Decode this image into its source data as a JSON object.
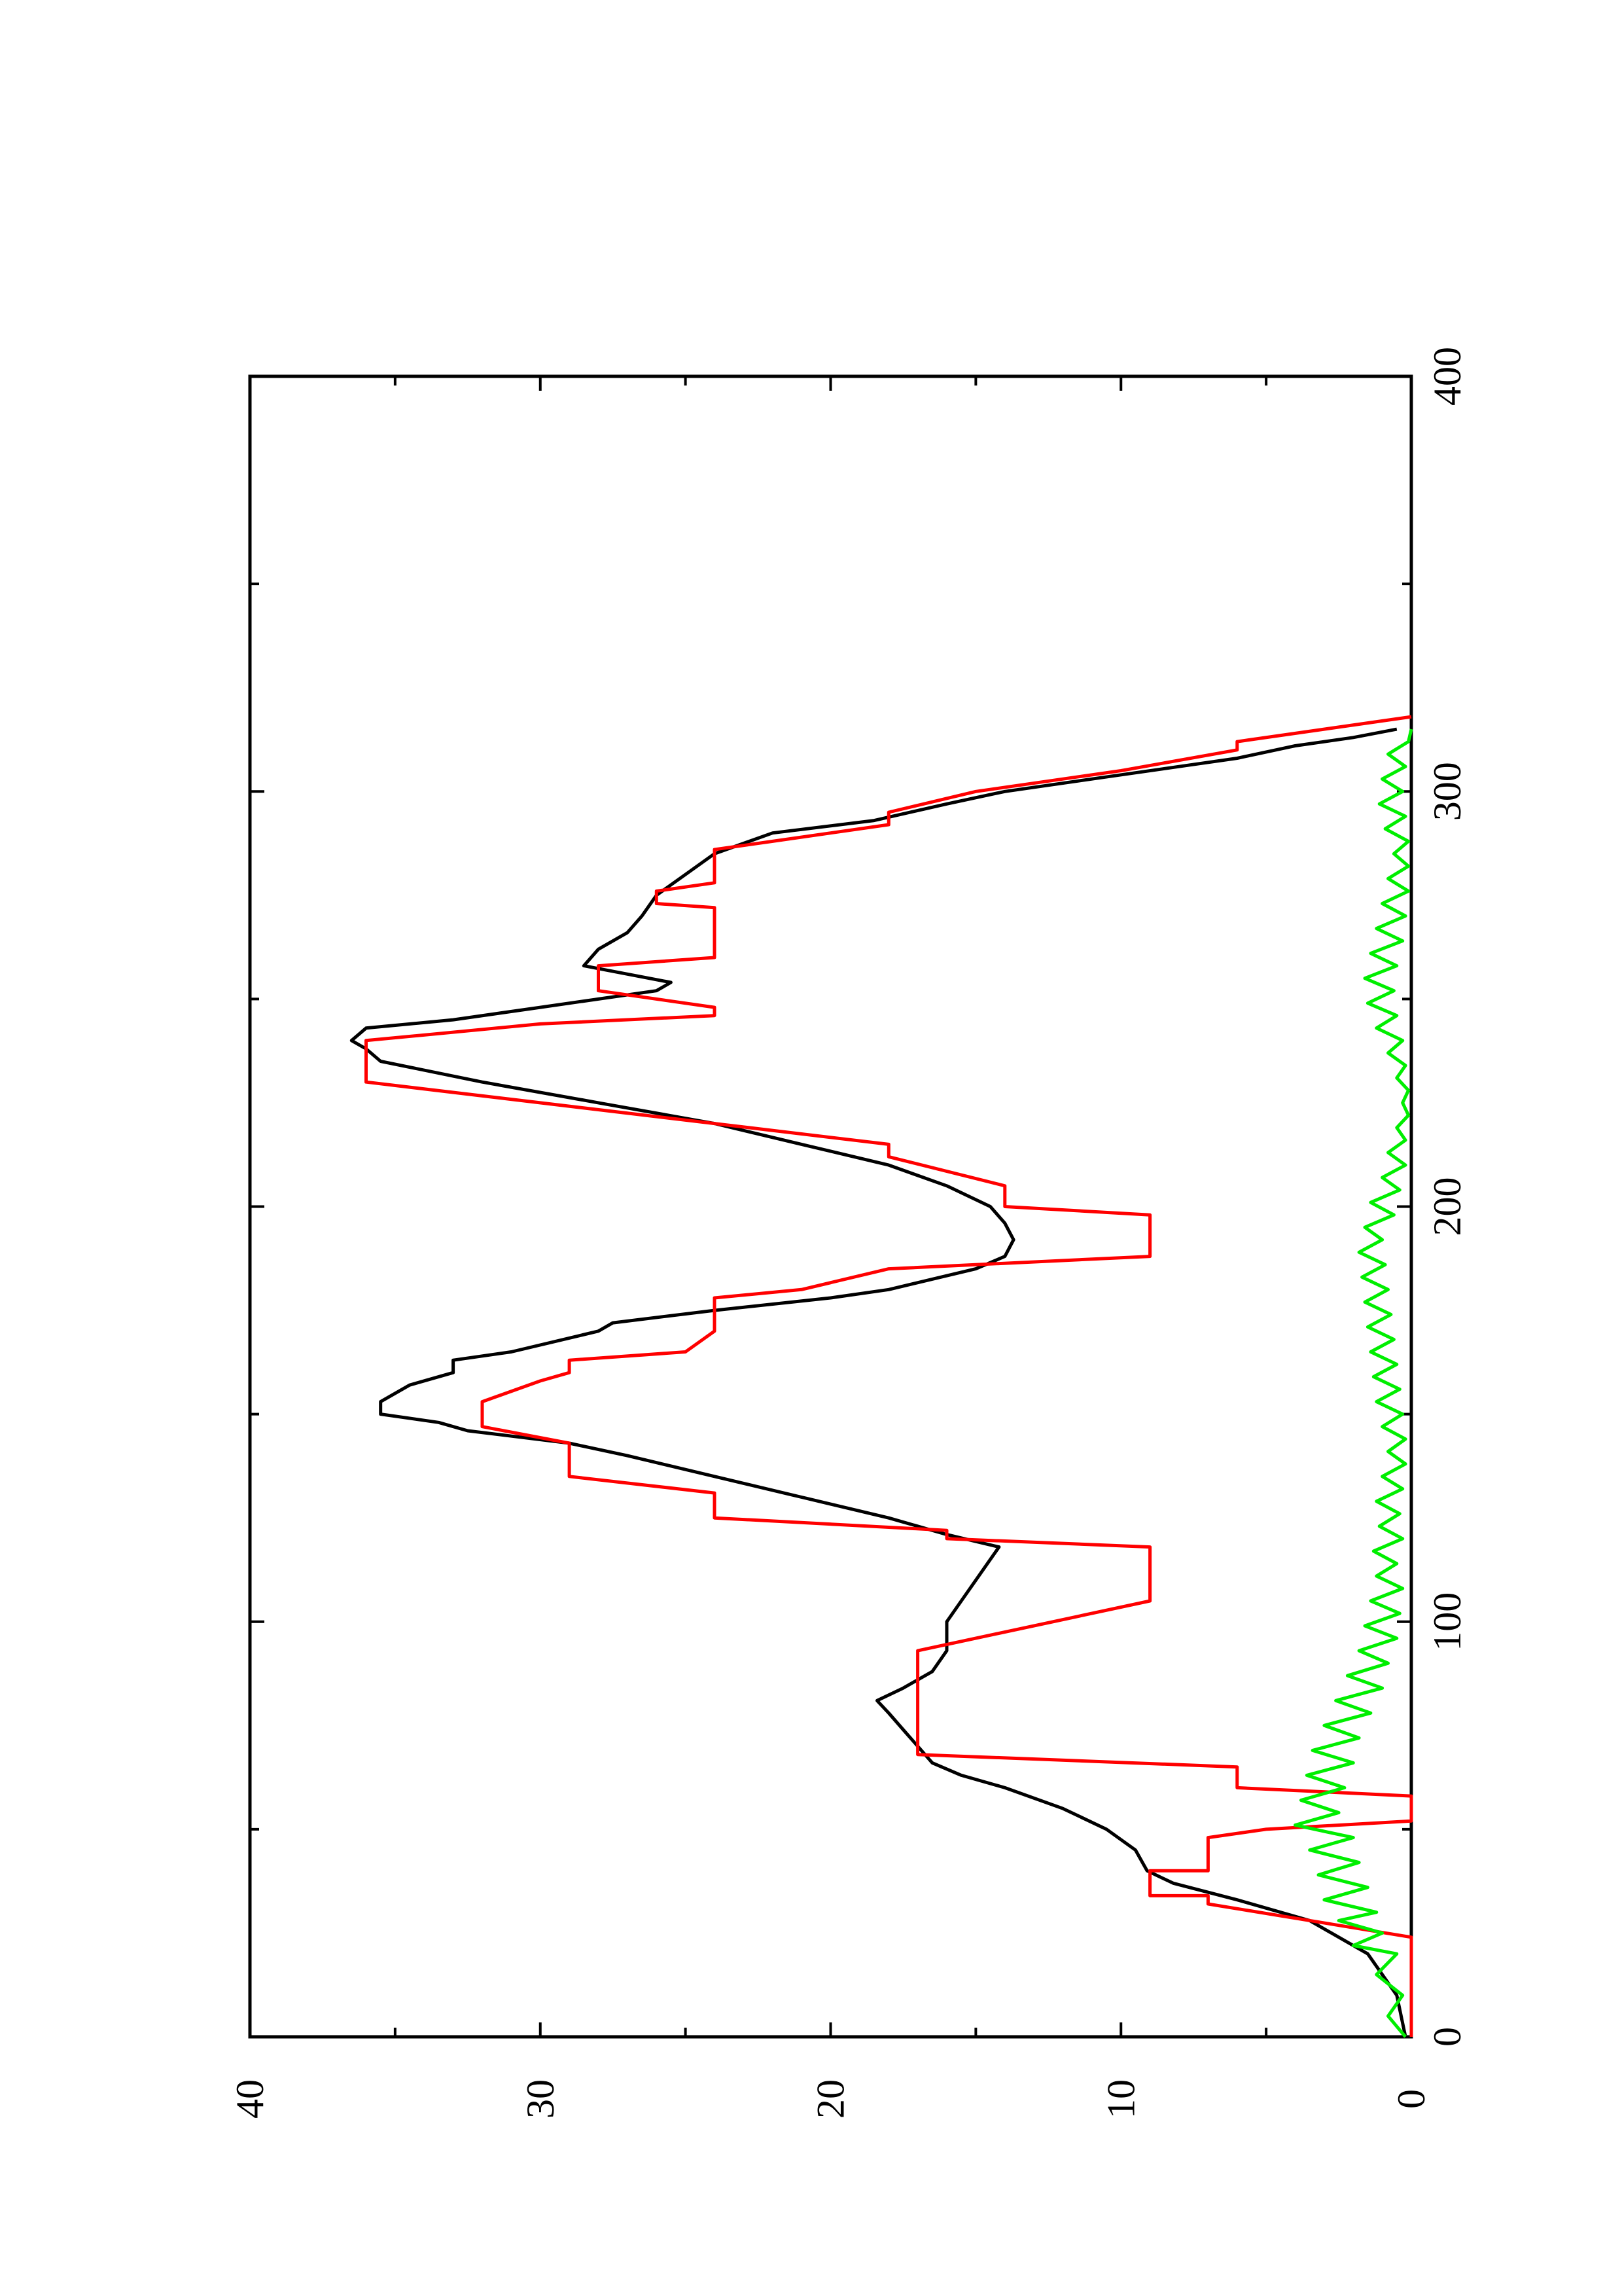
{
  "chart_data": {
    "type": "line",
    "title": "",
    "xlabel": "",
    "ylabel": "",
    "orientation": "rotated 90 degrees counter-clockwise (landscape plot on portrait page)",
    "xlim": [
      0,
      400
    ],
    "ylim": [
      0,
      40
    ],
    "x_ticks": [
      0,
      100,
      200,
      300,
      400
    ],
    "x_tick_labels": [
      "0",
      "100",
      "200",
      "300",
      "400"
    ],
    "x_minor_ticks": [
      50,
      150,
      250,
      350
    ],
    "y_ticks": [
      0,
      10,
      20,
      30,
      40
    ],
    "y_tick_labels": [
      "0",
      "10",
      "20",
      "30",
      "40"
    ],
    "y_minor_ticks": [
      5,
      15,
      25,
      35
    ],
    "grid": false,
    "legend": "none",
    "series": [
      {
        "color": "#000000",
        "points": [
          [
            0,
            0.2
          ],
          [
            10,
            0.5
          ],
          [
            20,
            1.5
          ],
          [
            28,
            3.5
          ],
          [
            33,
            6
          ],
          [
            37,
            8.2
          ],
          [
            40,
            9.1
          ],
          [
            45,
            9.5
          ],
          [
            50,
            10.5
          ],
          [
            55,
            12
          ],
          [
            60,
            14
          ],
          [
            63,
            15.5
          ],
          [
            66,
            16.5
          ],
          [
            70,
            17
          ],
          [
            74,
            17.5
          ],
          [
            78,
            18
          ],
          [
            81,
            18.4
          ],
          [
            84,
            17.5
          ],
          [
            88,
            16.5
          ],
          [
            93,
            16
          ],
          [
            100,
            16
          ],
          [
            105,
            15.5
          ],
          [
            110,
            15
          ],
          [
            115,
            14.5
          ],
          [
            118,
            14.2
          ],
          [
            121,
            16
          ],
          [
            125,
            18
          ],
          [
            130,
            21
          ],
          [
            135,
            24
          ],
          [
            140,
            27
          ],
          [
            143,
            29
          ],
          [
            146,
            32.5
          ],
          [
            148,
            33.5
          ],
          [
            150,
            35.5
          ],
          [
            153,
            35.5
          ],
          [
            157,
            34.5
          ],
          [
            160,
            33
          ],
          [
            163,
            33
          ],
          [
            165,
            31
          ],
          [
            170,
            28
          ],
          [
            172,
            27.5
          ],
          [
            175,
            24
          ],
          [
            178,
            20
          ],
          [
            180,
            18
          ],
          [
            185,
            15
          ],
          [
            188,
            14
          ],
          [
            192,
            13.7
          ],
          [
            196,
            14
          ],
          [
            200,
            14.5
          ],
          [
            205,
            16
          ],
          [
            210,
            18
          ],
          [
            215,
            21
          ],
          [
            220,
            24
          ],
          [
            225,
            28
          ],
          [
            230,
            32
          ],
          [
            235,
            35.5
          ],
          [
            238,
            36
          ],
          [
            240,
            36.5
          ],
          [
            243,
            36
          ],
          [
            245,
            33
          ],
          [
            248,
            30
          ],
          [
            250,
            28
          ],
          [
            252,
            26
          ],
          [
            254,
            25.5
          ],
          [
            256,
            27
          ],
          [
            258,
            28.5
          ],
          [
            262,
            28
          ],
          [
            266,
            27
          ],
          [
            270,
            26.5
          ],
          [
            275,
            26
          ],
          [
            280,
            25
          ],
          [
            285,
            24
          ],
          [
            290,
            22
          ],
          [
            293,
            18.5
          ],
          [
            297,
            16
          ],
          [
            300,
            14
          ],
          [
            303,
            11
          ],
          [
            306,
            8
          ],
          [
            308,
            6
          ],
          [
            311,
            4
          ],
          [
            313,
            2
          ],
          [
            315,
            0.5
          ]
        ]
      },
      {
        "color": "#ff0000",
        "points": [
          [
            0,
            0
          ],
          [
            24,
            0
          ],
          [
            32,
            7
          ],
          [
            34,
            7
          ],
          [
            34,
            9
          ],
          [
            40,
            9
          ],
          [
            40,
            7
          ],
          [
            48,
            7
          ],
          [
            50,
            5
          ],
          [
            52,
            0
          ],
          [
            58,
            0
          ],
          [
            60,
            6
          ],
          [
            65,
            6
          ],
          [
            68,
            17
          ],
          [
            75,
            17
          ],
          [
            93,
            17
          ],
          [
            105,
            9
          ],
          [
            118,
            9
          ],
          [
            120,
            16
          ],
          [
            122,
            16
          ],
          [
            125,
            24
          ],
          [
            131,
            24
          ],
          [
            135,
            29
          ],
          [
            143,
            29
          ],
          [
            147,
            32
          ],
          [
            153,
            32
          ],
          [
            158,
            30
          ],
          [
            160,
            29
          ],
          [
            163,
            29
          ],
          [
            165,
            25
          ],
          [
            170,
            24
          ],
          [
            178,
            24
          ],
          [
            180,
            21
          ],
          [
            185,
            18
          ],
          [
            188,
            9
          ],
          [
            198,
            9
          ],
          [
            200,
            14
          ],
          [
            205,
            14
          ],
          [
            212,
            18
          ],
          [
            215,
            18
          ],
          [
            220,
            24
          ],
          [
            230,
            36
          ],
          [
            240,
            36
          ],
          [
            244,
            30
          ],
          [
            246,
            24
          ],
          [
            248,
            24
          ],
          [
            252,
            28
          ],
          [
            258,
            28
          ],
          [
            260,
            24
          ],
          [
            272,
            24
          ],
          [
            273,
            26
          ],
          [
            276,
            26
          ],
          [
            278,
            24
          ],
          [
            282,
            24
          ],
          [
            286,
            24
          ],
          [
            288,
            22
          ],
          [
            292,
            18
          ],
          [
            295,
            18
          ],
          [
            300,
            15
          ],
          [
            305,
            10
          ],
          [
            310,
            6
          ],
          [
            312,
            6
          ],
          [
            318,
            0
          ]
        ]
      },
      {
        "color": "#00ee00",
        "points": [
          [
            0,
            0.2
          ],
          [
            5,
            0.8
          ],
          [
            10,
            0.3
          ],
          [
            15,
            1.2
          ],
          [
            20,
            0.5
          ],
          [
            22,
            2
          ],
          [
            25,
            1
          ],
          [
            28,
            2.5
          ],
          [
            30,
            1.2
          ],
          [
            33,
            3
          ],
          [
            36,
            1.5
          ],
          [
            39,
            3.2
          ],
          [
            42,
            1.8
          ],
          [
            45,
            3.5
          ],
          [
            48,
            2
          ],
          [
            51,
            4
          ],
          [
            54,
            2.5
          ],
          [
            57,
            3.8
          ],
          [
            60,
            2.3
          ],
          [
            63,
            3.6
          ],
          [
            66,
            2
          ],
          [
            69,
            3.4
          ],
          [
            72,
            1.8
          ],
          [
            75,
            3
          ],
          [
            78,
            1.4
          ],
          [
            81,
            2.6
          ],
          [
            84,
            1
          ],
          [
            87,
            2.2
          ],
          [
            90,
            0.8
          ],
          [
            93,
            1.8
          ],
          [
            96,
            0.5
          ],
          [
            99,
            1.6
          ],
          [
            102,
            0.4
          ],
          [
            105,
            1.4
          ],
          [
            108,
            0.3
          ],
          [
            111,
            1.2
          ],
          [
            114,
            0.5
          ],
          [
            117,
            1.3
          ],
          [
            120,
            0.3
          ],
          [
            123,
            1.1
          ],
          [
            126,
            0.4
          ],
          [
            129,
            1.2
          ],
          [
            132,
            0.3
          ],
          [
            135,
            1
          ],
          [
            138,
            0.2
          ],
          [
            141,
            0.8
          ],
          [
            144,
            0.2
          ],
          [
            147,
            1
          ],
          [
            150,
            0.3
          ],
          [
            153,
            1.2
          ],
          [
            156,
            0.4
          ],
          [
            159,
            1.3
          ],
          [
            162,
            0.5
          ],
          [
            165,
            1.4
          ],
          [
            168,
            0.6
          ],
          [
            171,
            1.5
          ],
          [
            174,
            0.7
          ],
          [
            177,
            1.6
          ],
          [
            180,
            0.8
          ],
          [
            183,
            1.7
          ],
          [
            186,
            0.9
          ],
          [
            189,
            1.8
          ],
          [
            192,
            1
          ],
          [
            195,
            1.6
          ],
          [
            198,
            0.6
          ],
          [
            201,
            1.4
          ],
          [
            204,
            0.4
          ],
          [
            207,
            1
          ],
          [
            210,
            0.2
          ],
          [
            213,
            0.8
          ],
          [
            216,
            0.2
          ],
          [
            219,
            0.5
          ],
          [
            222,
            0.1
          ],
          [
            225,
            0.3
          ],
          [
            228,
            0.1
          ],
          [
            231,
            0.5
          ],
          [
            234,
            0.2
          ],
          [
            237,
            0.8
          ],
          [
            240,
            0.3
          ],
          [
            243,
            1.2
          ],
          [
            246,
            0.5
          ],
          [
            249,
            1.5
          ],
          [
            252,
            0.6
          ],
          [
            255,
            1.6
          ],
          [
            258,
            0.5
          ],
          [
            261,
            1.4
          ],
          [
            264,
            0.3
          ],
          [
            267,
            1.2
          ],
          [
            270,
            0.2
          ],
          [
            273,
            1
          ],
          [
            276,
            0.1
          ],
          [
            279,
            0.8
          ],
          [
            282,
            0.1
          ],
          [
            285,
            0.6
          ],
          [
            288,
            0.1
          ],
          [
            291,
            0.9
          ],
          [
            294,
            0.2
          ],
          [
            297,
            1.1
          ],
          [
            300,
            0.3
          ],
          [
            303,
            1
          ],
          [
            306,
            0.2
          ],
          [
            309,
            0.8
          ],
          [
            312,
            0.1
          ],
          [
            315,
            0
          ]
        ]
      }
    ]
  }
}
